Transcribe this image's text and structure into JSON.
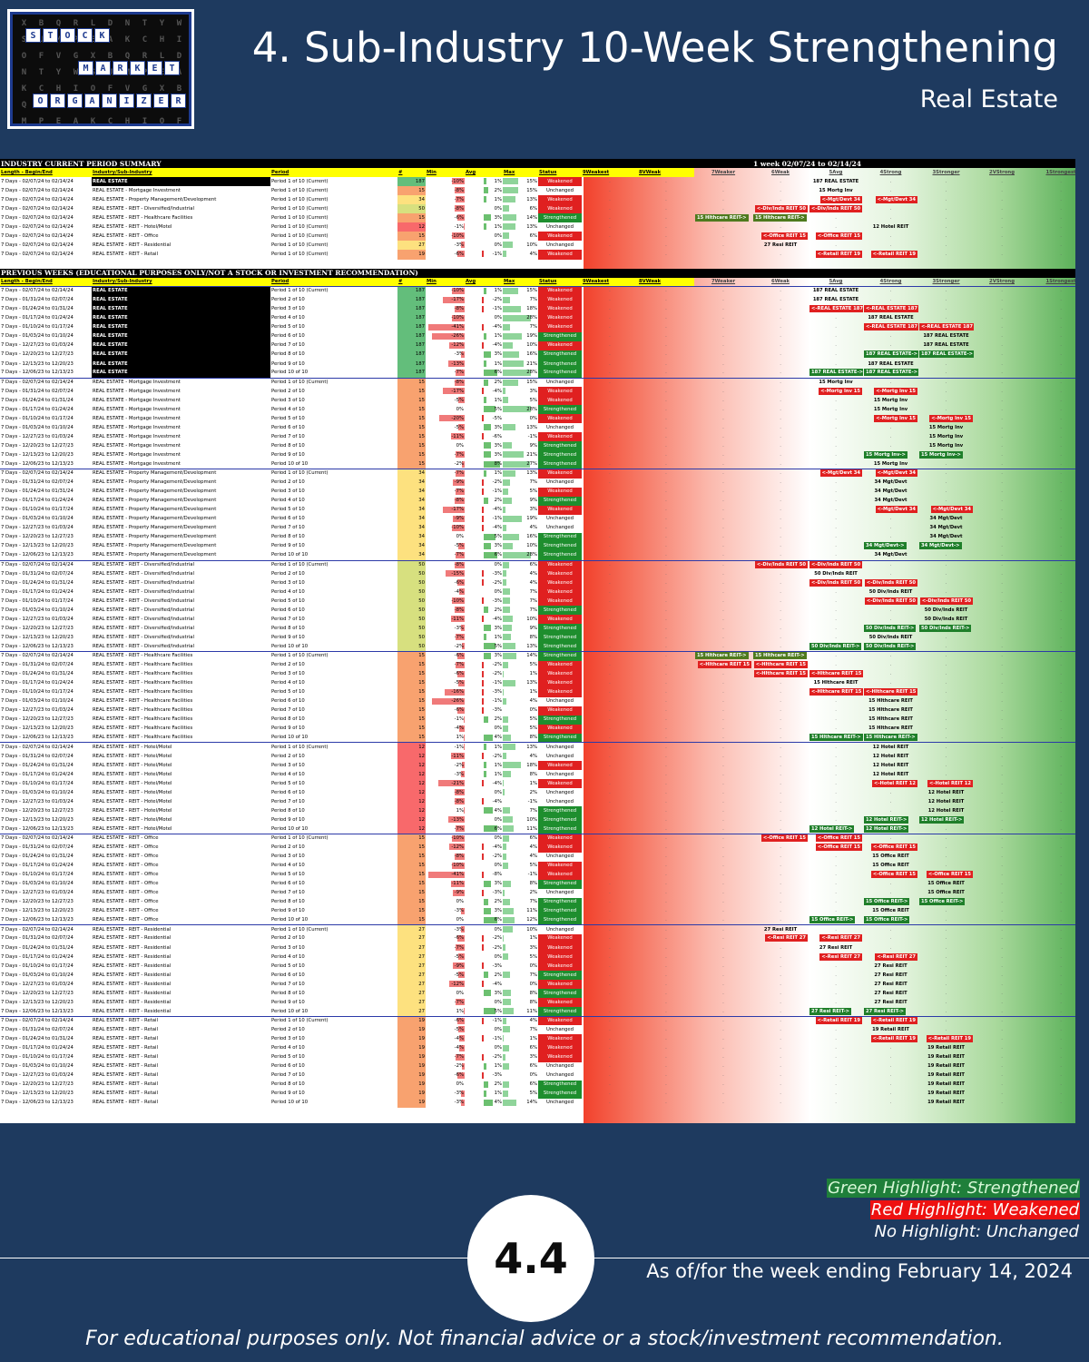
{
  "logo": {
    "rows": [
      [
        "S",
        "T",
        "O",
        "C",
        "K"
      ],
      [
        "M",
        "A",
        "R",
        "K",
        "E",
        "T"
      ],
      [
        "O",
        "R",
        "G",
        "A",
        "N",
        "I",
        "Z",
        "E",
        "R"
      ]
    ]
  },
  "header": {
    "title": "4. Sub-Industry 10-Week Strengthening",
    "subtitle": "Real Estate"
  },
  "summary": {
    "section_title": "INDUSTRY CURRENT PERIOD SUMMARY",
    "period_title": "1 week 02/07/24 to 02/14/24"
  },
  "previous": {
    "section_title": "PREVIOUS WEEKS (EDUCATIONAL PURPOSES ONLY/NOT A STOCK OR INVESTMENT RECOMMENDATION)"
  },
  "columns": [
    "Length - Begin/End",
    "Industry/Sub-Industry",
    "Period",
    "#",
    "Min",
    "Avg",
    "Max",
    "Status",
    "9Weakest",
    "8VWeak",
    "7Weaker",
    "6Weak",
    "5Avg",
    "4Strong",
    "3Stronger",
    "2VStrong",
    "1Strongest"
  ],
  "legend": {
    "green": "Green Highlight: Strengthened",
    "red": "Red Highlight: Weakened",
    "none": "No Highlight: Unchanged"
  },
  "badge": "4.4",
  "asof": "As of/for the week ending February 14, 2024",
  "footer": "For educational purposes only. Not financial advice or a stock/investment recommendation."
}
